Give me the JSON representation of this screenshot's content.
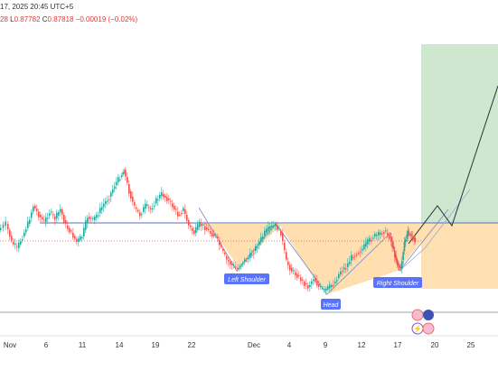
{
  "header": {
    "datetime": "17, 2025 20:45 UTC+5",
    "ohlc_prefix": "28",
    "low_label": "L",
    "low_value": "0.87782",
    "close_label": "C",
    "close_value": "0.87818",
    "change": "−0.00019 (−0.02%)"
  },
  "x_axis": {
    "ticks": [
      "Nov",
      "6",
      "11",
      "14",
      "19",
      "22",
      "Dec",
      "4",
      "9",
      "12",
      "17",
      "20",
      "25"
    ]
  },
  "pattern_labels": {
    "left_shoulder": "Left Shoulder",
    "head": "Head",
    "right_shoulder": "Right Shoulder"
  },
  "colors": {
    "up": "#26a69a",
    "down": "#ef5350",
    "neckline_zone": "#ffb74d",
    "target_zone": "#a5d6a7",
    "stop_zone": "#ffe0b2",
    "label_bg": "#3d5afe"
  },
  "chart_data": {
    "type": "candlestick",
    "x": [
      "Nov",
      "6",
      "11",
      "14",
      "19",
      "22",
      "Dec",
      "4",
      "9",
      "12",
      "17",
      "20",
      "25"
    ],
    "pattern": "Inverse Head and Shoulders",
    "annotations": [
      "Left Shoulder",
      "Head",
      "Right Shoulder"
    ],
    "grid": false
  }
}
